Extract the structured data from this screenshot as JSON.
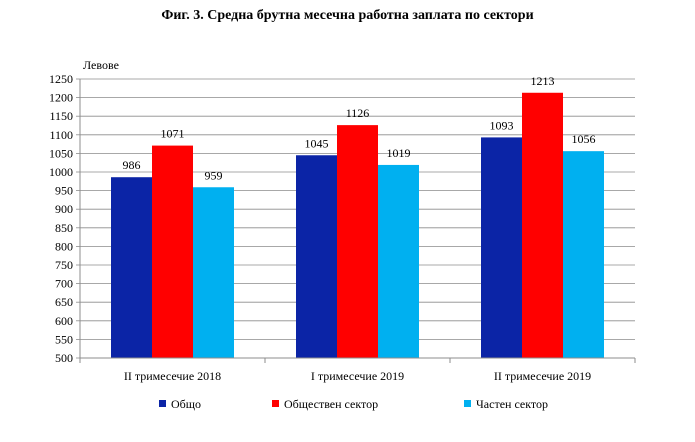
{
  "chart_data": {
    "type": "bar",
    "title": "Фиг. 3. Средна брутна месечна работна заплата по сектори",
    "ylabel": "Левове",
    "xlabel": "",
    "ylim": [
      500,
      1250
    ],
    "ytick_step": 50,
    "grid": true,
    "legend_position": "bottom",
    "categories": [
      "II тримесечие 2018",
      "I тримесечие 2019",
      "II тримесечие 2019"
    ],
    "series": [
      {
        "name": "Общо",
        "values": [
          986,
          1045,
          1093
        ],
        "color": "#0b24a6"
      },
      {
        "name": "Обществен сектор",
        "values": [
          1071,
          1126,
          1213
        ],
        "color": "#ff0000"
      },
      {
        "name": "Частен сектор",
        "values": [
          959,
          1019,
          1056
        ],
        "color": "#00b0f0"
      }
    ]
  }
}
